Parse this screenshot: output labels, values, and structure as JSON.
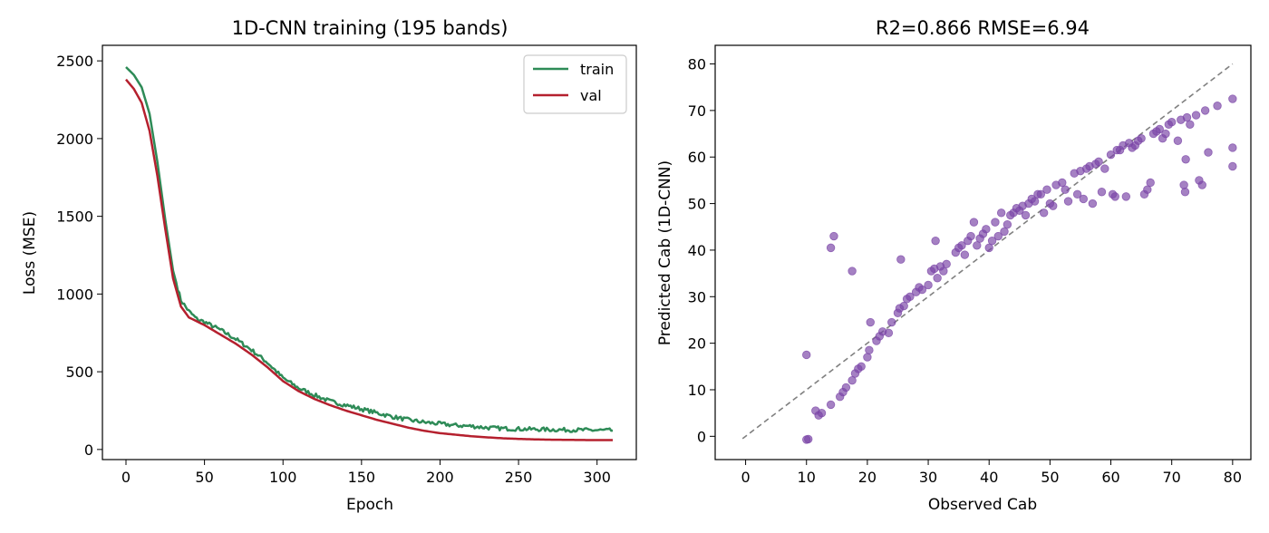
{
  "charts": [
    {
      "type": "line",
      "title": "1D-CNN training (195 bands)",
      "xlabel": "Epoch",
      "ylabel": "Loss (MSE)",
      "xlim": [
        -15,
        325
      ],
      "ylim": [
        -65,
        2600
      ],
      "xticks": [
        0,
        50,
        100,
        150,
        200,
        250,
        300
      ],
      "yticks": [
        0,
        500,
        1000,
        1500,
        2000,
        2500
      ],
      "grid": false,
      "legend": {
        "placement": "top-right"
      },
      "series": [
        {
          "name": "train",
          "color": "#2e8b57",
          "noise": "jagged",
          "points": [
            [
              0,
              2460
            ],
            [
              5,
              2410
            ],
            [
              10,
              2330
            ],
            [
              15,
              2160
            ],
            [
              20,
              1850
            ],
            [
              25,
              1480
            ],
            [
              30,
              1150
            ],
            [
              35,
              960
            ],
            [
              40,
              890
            ],
            [
              45,
              840
            ],
            [
              50,
              820
            ],
            [
              60,
              770
            ],
            [
              70,
              710
            ],
            [
              80,
              640
            ],
            [
              90,
              560
            ],
            [
              100,
              460
            ],
            [
              110,
              395
            ],
            [
              120,
              350
            ],
            [
              130,
              310
            ],
            [
              140,
              285
            ],
            [
              150,
              260
            ],
            [
              160,
              235
            ],
            [
              170,
              210
            ],
            [
              180,
              190
            ],
            [
              190,
              175
            ],
            [
              200,
              165
            ],
            [
              210,
              155
            ],
            [
              220,
              150
            ],
            [
              230,
              140
            ],
            [
              240,
              135
            ],
            [
              250,
              132
            ],
            [
              260,
              130
            ],
            [
              270,
              128
            ],
            [
              280,
              126
            ],
            [
              290,
              125
            ],
            [
              300,
              124
            ],
            [
              310,
              122
            ]
          ]
        },
        {
          "name": "val",
          "color": "#b5202e",
          "points": [
            [
              0,
              2380
            ],
            [
              5,
              2320
            ],
            [
              10,
              2230
            ],
            [
              15,
              2050
            ],
            [
              20,
              1760
            ],
            [
              25,
              1420
            ],
            [
              30,
              1100
            ],
            [
              35,
              920
            ],
            [
              40,
              850
            ],
            [
              50,
              800
            ],
            [
              60,
              740
            ],
            [
              70,
              680
            ],
            [
              80,
              610
            ],
            [
              90,
              530
            ],
            [
              100,
              440
            ],
            [
              110,
              375
            ],
            [
              120,
              325
            ],
            [
              130,
              285
            ],
            [
              140,
              250
            ],
            [
              150,
              220
            ],
            [
              160,
              190
            ],
            [
              170,
              165
            ],
            [
              180,
              140
            ],
            [
              190,
              120
            ],
            [
              200,
              105
            ],
            [
              210,
              95
            ],
            [
              220,
              85
            ],
            [
              230,
              78
            ],
            [
              240,
              72
            ],
            [
              250,
              68
            ],
            [
              260,
              65
            ],
            [
              270,
              63
            ],
            [
              280,
              62
            ],
            [
              290,
              61
            ],
            [
              300,
              60
            ],
            [
              310,
              60
            ]
          ]
        }
      ]
    },
    {
      "type": "scatter",
      "title": "R2=0.866  RMSE=6.94",
      "xlabel": "Observed Cab",
      "ylabel": "Predicted Cab (1D-CNN)",
      "xlim": [
        -5,
        83
      ],
      "ylim": [
        -5,
        84
      ],
      "xticks": [
        0,
        10,
        20,
        30,
        40,
        50,
        60,
        70,
        80
      ],
      "yticks": [
        0,
        10,
        20,
        30,
        40,
        50,
        60,
        70,
        80
      ],
      "grid": false,
      "point_color": "#7b46a7",
      "reference_line": {
        "from": [
          -0.5,
          -0.5
        ],
        "to": [
          80,
          80
        ],
        "style": "dashed",
        "color": "#808080"
      },
      "points": [
        [
          10,
          17.5
        ],
        [
          10,
          -0.7
        ],
        [
          10.3,
          -0.6
        ],
        [
          11.5,
          5.5
        ],
        [
          12,
          4.5
        ],
        [
          12.5,
          5
        ],
        [
          14,
          40.5
        ],
        [
          14.5,
          43
        ],
        [
          14,
          6.8
        ],
        [
          15.5,
          8.5
        ],
        [
          16,
          9.5
        ],
        [
          16.5,
          10.5
        ],
        [
          17.5,
          12
        ],
        [
          17.5,
          35.5
        ],
        [
          18,
          13.5
        ],
        [
          18.5,
          14.5
        ],
        [
          19,
          15
        ],
        [
          20,
          17
        ],
        [
          20.3,
          18.5
        ],
        [
          20.5,
          24.5
        ],
        [
          21.5,
          20.5
        ],
        [
          22,
          21.5
        ],
        [
          22.5,
          22.5
        ],
        [
          23.5,
          22.2
        ],
        [
          24,
          24.5
        ],
        [
          25,
          26.5
        ],
        [
          25.3,
          27.5
        ],
        [
          25.5,
          38
        ],
        [
          26,
          28
        ],
        [
          26.5,
          29.5
        ],
        [
          27,
          30
        ],
        [
          28,
          31
        ],
        [
          28.5,
          32
        ],
        [
          29,
          31.5
        ],
        [
          30,
          32.5
        ],
        [
          30.5,
          35.5
        ],
        [
          31,
          36
        ],
        [
          31.5,
          34
        ],
        [
          31.2,
          42
        ],
        [
          32,
          36.5
        ],
        [
          32.5,
          35.5
        ],
        [
          33,
          37
        ],
        [
          34.5,
          39.5
        ],
        [
          35,
          40.5
        ],
        [
          35.5,
          41
        ],
        [
          36,
          39
        ],
        [
          36.5,
          42
        ],
        [
          37,
          43
        ],
        [
          37.5,
          46
        ],
        [
          38,
          41
        ],
        [
          38.5,
          42.5
        ],
        [
          39,
          43.5
        ],
        [
          39.5,
          44.5
        ],
        [
          40,
          40.5
        ],
        [
          40.5,
          42
        ],
        [
          41,
          46
        ],
        [
          41.5,
          43
        ],
        [
          42,
          48
        ],
        [
          42.5,
          44
        ],
        [
          43,
          45.5
        ],
        [
          43.5,
          47.5
        ],
        [
          44,
          48
        ],
        [
          44.5,
          49
        ],
        [
          45,
          48.5
        ],
        [
          45.5,
          49.5
        ],
        [
          46,
          47.5
        ],
        [
          46.5,
          50
        ],
        [
          47,
          51
        ],
        [
          47.5,
          50.5
        ],
        [
          48,
          52
        ],
        [
          48.5,
          52
        ],
        [
          49,
          48
        ],
        [
          49.5,
          53
        ],
        [
          50,
          50
        ],
        [
          50.5,
          49.5
        ],
        [
          51,
          54
        ],
        [
          52,
          54.5
        ],
        [
          52.5,
          53
        ],
        [
          53,
          50.5
        ],
        [
          54,
          56.5
        ],
        [
          54.5,
          52
        ],
        [
          55,
          57
        ],
        [
          55.5,
          51
        ],
        [
          56,
          57.5
        ],
        [
          56.5,
          58
        ],
        [
          57,
          50
        ],
        [
          57.5,
          58.5
        ],
        [
          58,
          59
        ],
        [
          58.5,
          52.5
        ],
        [
          59,
          57.5
        ],
        [
          60,
          60.5
        ],
        [
          60.3,
          52
        ],
        [
          60.7,
          51.5
        ],
        [
          61,
          61.5
        ],
        [
          61.5,
          61.5
        ],
        [
          62,
          62.5
        ],
        [
          62.5,
          51.5
        ],
        [
          63,
          63
        ],
        [
          63.5,
          62
        ],
        [
          64,
          62.5
        ],
        [
          64.5,
          63.5
        ],
        [
          65,
          64
        ],
        [
          65.5,
          52
        ],
        [
          66,
          53
        ],
        [
          66.5,
          54.5
        ],
        [
          67,
          65
        ],
        [
          67.5,
          65.5
        ],
        [
          68,
          66
        ],
        [
          68.5,
          64
        ],
        [
          69,
          65
        ],
        [
          69.5,
          67
        ],
        [
          70,
          67.5
        ],
        [
          71,
          63.5
        ],
        [
          71.5,
          68
        ],
        [
          72,
          54
        ],
        [
          72.2,
          52.5
        ],
        [
          72.3,
          59.5
        ],
        [
          72.5,
          68.5
        ],
        [
          73,
          67
        ],
        [
          74,
          69
        ],
        [
          74.5,
          55
        ],
        [
          75.5,
          70
        ],
        [
          75,
          54
        ],
        [
          76,
          61
        ],
        [
          77.5,
          71
        ],
        [
          80,
          72.5
        ],
        [
          80,
          62
        ],
        [
          80,
          58
        ]
      ]
    }
  ]
}
